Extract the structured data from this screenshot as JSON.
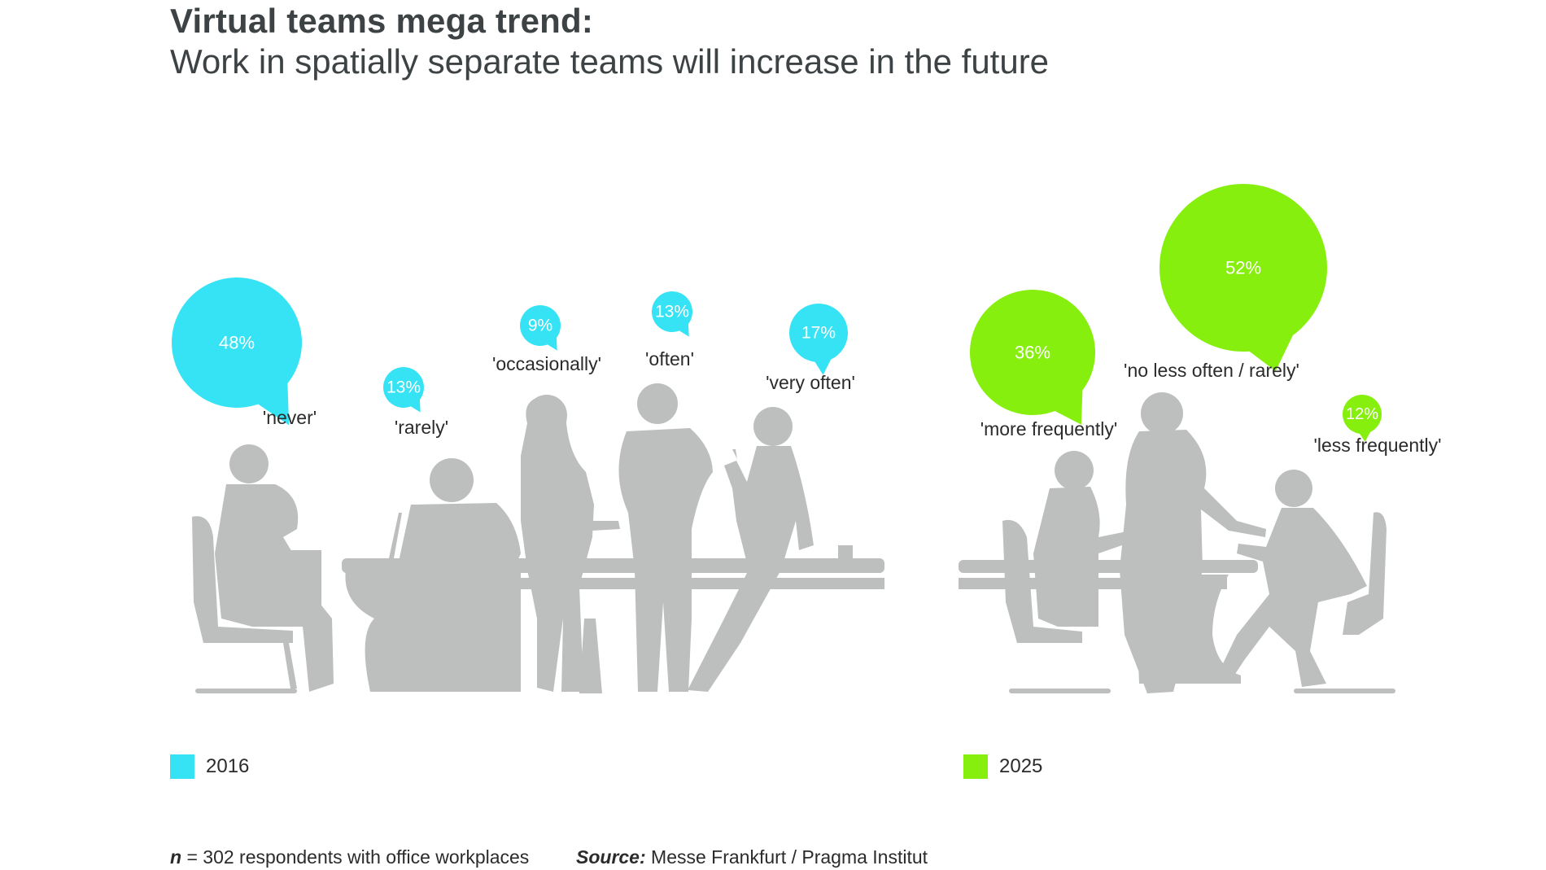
{
  "title": "Virtual teams mega trend:",
  "subtitle": "Work in spatially separate teams will increase in the future",
  "colors": {
    "cyan": "#36e3f4",
    "green": "#86ef0d",
    "silhouette": "#bdbfbf"
  },
  "chart_data": [
    {
      "type": "bubble",
      "series_name": "2016",
      "color": "#36e3f4",
      "categories": [
        "'never'",
        "'rarely'",
        "'occasionally'",
        "'often'",
        "'very often'"
      ],
      "values": [
        48,
        13,
        9,
        13,
        17
      ],
      "labels": [
        "48%",
        "13%",
        "9%",
        "13%",
        "17%"
      ]
    },
    {
      "type": "bubble",
      "series_name": "2025",
      "color": "#86ef0d",
      "categories": [
        "'more frequently'",
        "'no less often / rarely'",
        "'less frequently'"
      ],
      "values": [
        36,
        52,
        12
      ],
      "labels": [
        "36%",
        "52%",
        "12%"
      ]
    }
  ],
  "legend": {
    "left": {
      "label": "2016",
      "color": "#36e3f4"
    },
    "right": {
      "label": "2025",
      "color": "#86ef0d"
    }
  },
  "footnote": {
    "n_symbol": "n",
    "text": " = 302 respondents with office workplaces"
  },
  "source": {
    "label": "Source:",
    "text": " Messe Frankfurt / Pragma Institut"
  }
}
